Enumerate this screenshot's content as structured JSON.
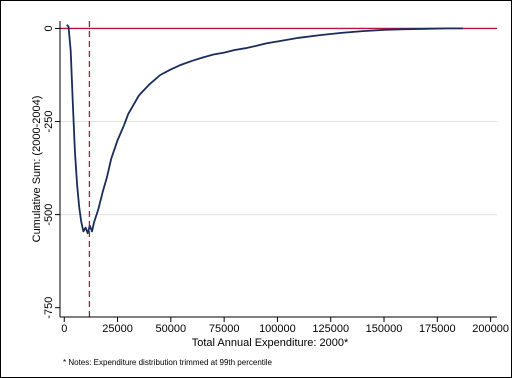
{
  "chart_data": {
    "type": "line",
    "title": "",
    "xlabel": "Total Annual Expenditure: 2000*",
    "ylabel": "Cumulative Sum: (2000-2004)",
    "note": "* Notes: Expenditure distribution trimmed at 99th percentile",
    "xlim": [
      -2000,
      203000
    ],
    "ylim": [
      -775,
      20
    ],
    "x_ticks": [
      0,
      25000,
      50000,
      75000,
      100000,
      125000,
      150000,
      175000,
      200000
    ],
    "y_ticks": [
      0,
      -250,
      -500,
      -750
    ],
    "y_gridlines": [
      -250,
      -500
    ],
    "reference_lines": [
      {
        "axis": "y",
        "value": 0,
        "style": "solid",
        "color": "#b3153c"
      },
      {
        "axis": "x",
        "value": 11800,
        "style": "dashed",
        "color": "#b3153c"
      }
    ],
    "series": [
      {
        "color": "#1a2c5b",
        "x": [
          1200,
          2000,
          3000,
          4000,
          5000,
          6000,
          7000,
          8000,
          9000,
          10000,
          11000,
          12000,
          13000,
          14000,
          16000,
          18000,
          20000,
          22000,
          25000,
          28000,
          30000,
          35000,
          40000,
          45000,
          50000,
          55000,
          60000,
          65000,
          70000,
          75000,
          80000,
          85000,
          90000,
          95000,
          100000,
          110000,
          120000,
          130000,
          140000,
          150000,
          160000,
          170000,
          180000,
          187000
        ],
        "y": [
          10,
          5,
          -60,
          -200,
          -330,
          -420,
          -480,
          -520,
          -545,
          -535,
          -550,
          -530,
          -545,
          -520,
          -485,
          -440,
          -400,
          -350,
          -300,
          -260,
          -230,
          -180,
          -150,
          -125,
          -110,
          -97,
          -87,
          -78,
          -70,
          -65,
          -58,
          -53,
          -47,
          -40,
          -35,
          -25,
          -18,
          -12,
          -7,
          -4,
          -2,
          -1,
          0,
          0
        ]
      }
    ]
  },
  "colors": {
    "line": "#1a2c5b",
    "reference": "#b3153c",
    "grid": "#e0e0e0",
    "axis": "#000000"
  }
}
